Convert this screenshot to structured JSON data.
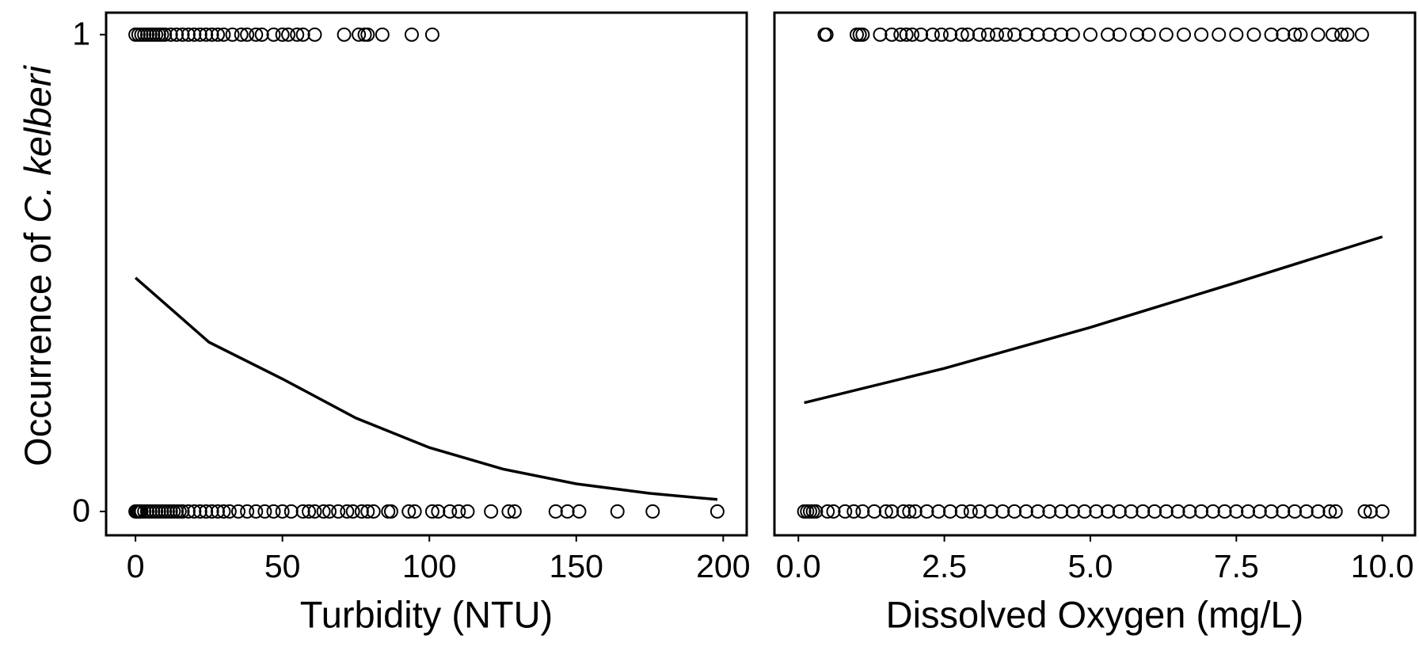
{
  "chart_data": [
    {
      "type": "scatter",
      "xlabel": "Turbidity (NTU)",
      "ylabel": [
        "Occurrence of",
        "C. kelberi"
      ],
      "ylabel_italic": [
        false,
        true
      ],
      "xlim": [
        -10,
        208
      ],
      "ylim": [
        -0.05,
        1.046
      ],
      "xticks": [
        0,
        50,
        100,
        150,
        200
      ],
      "yticks": [
        0,
        1
      ],
      "series": [
        {
          "kind": "points",
          "color": "#000000",
          "x": [
            0,
            1,
            2,
            3,
            4,
            5,
            6,
            7,
            8,
            9,
            10,
            12,
            14,
            16,
            18,
            20,
            22,
            24,
            26,
            28,
            30,
            33,
            36,
            38,
            41,
            43,
            47,
            50,
            52,
            55,
            57,
            61,
            71,
            76,
            78,
            79,
            84,
            94,
            101
          ],
          "values": [
            1,
            1,
            1,
            1,
            1,
            1,
            1,
            1,
            1,
            1,
            1,
            1,
            1,
            1,
            1,
            1,
            1,
            1,
            1,
            1,
            1,
            1,
            1,
            1,
            1,
            1,
            1,
            1,
            1,
            1,
            1,
            1,
            1,
            1,
            1,
            1,
            1,
            1,
            1
          ]
        },
        {
          "kind": "points",
          "color": "#000000",
          "x": [
            0,
            0.5,
            1,
            1.5,
            2,
            3,
            4,
            5,
            6,
            7,
            8,
            9,
            10,
            11,
            12,
            13,
            14,
            15,
            16,
            18,
            20,
            22,
            24,
            26,
            28,
            30,
            32,
            35,
            38,
            41,
            44,
            47,
            50,
            53,
            57,
            59,
            61,
            64,
            66,
            69,
            72,
            74,
            77,
            79,
            81,
            86,
            87,
            93,
            95,
            101,
            103,
            107,
            110,
            113,
            121,
            127,
            129,
            143,
            147,
            151,
            164,
            176,
            198
          ],
          "values": [
            0,
            0,
            0,
            0,
            0,
            0,
            0,
            0,
            0,
            0,
            0,
            0,
            0,
            0,
            0,
            0,
            0,
            0,
            0,
            0,
            0,
            0,
            0,
            0,
            0,
            0,
            0,
            0,
            0,
            0,
            0,
            0,
            0,
            0,
            0,
            0,
            0,
            0,
            0,
            0,
            0,
            0,
            0,
            0,
            0,
            0,
            0,
            0,
            0,
            0,
            0,
            0,
            0,
            0,
            0,
            0,
            0,
            0,
            0,
            0,
            0,
            0,
            0
          ]
        },
        {
          "kind": "line",
          "color": "#000000",
          "x": [
            0,
            25,
            50,
            75,
            100,
            125,
            150,
            175,
            198
          ],
          "values": [
            0.49,
            0.355,
            0.278,
            0.196,
            0.134,
            0.089,
            0.058,
            0.038,
            0.025
          ]
        }
      ]
    },
    {
      "type": "scatter",
      "xlabel": "Dissolved Oxygen (mg/L)",
      "xlim": [
        -0.41,
        10.56
      ],
      "ylim": [
        -0.05,
        1.046
      ],
      "xticks": [
        {
          "value": 0,
          "label": "0.0"
        },
        {
          "value": 2.5,
          "label": "2.5"
        },
        {
          "value": 5,
          "label": "5.0"
        },
        {
          "value": 7.5,
          "label": "7.5"
        },
        {
          "value": 10,
          "label": "10.0"
        }
      ],
      "series": [
        {
          "kind": "points",
          "color": "#000000",
          "x": [
            0.45,
            0.48,
            1.0,
            1.05,
            1.1,
            1.4,
            1.6,
            1.75,
            1.85,
            1.95,
            2.1,
            2.3,
            2.45,
            2.6,
            2.8,
            2.9,
            3.1,
            3.25,
            3.4,
            3.55,
            3.7,
            3.9,
            4.1,
            4.3,
            4.5,
            4.7,
            5.0,
            5.3,
            5.5,
            5.8,
            6.0,
            6.3,
            6.6,
            6.9,
            7.2,
            7.5,
            7.8,
            8.1,
            8.3,
            8.5,
            8.6,
            8.9,
            9.15,
            9.3,
            9.4,
            9.65
          ],
          "values": [
            1,
            1,
            1,
            1,
            1,
            1,
            1,
            1,
            1,
            1,
            1,
            1,
            1,
            1,
            1,
            1,
            1,
            1,
            1,
            1,
            1,
            1,
            1,
            1,
            1,
            1,
            1,
            1,
            1,
            1,
            1,
            1,
            1,
            1,
            1,
            1,
            1,
            1,
            1,
            1,
            1,
            1,
            1,
            1,
            1,
            1
          ]
        },
        {
          "kind": "points",
          "color": "#000000",
          "x": [
            0.1,
            0.15,
            0.2,
            0.25,
            0.3,
            0.5,
            0.6,
            0.8,
            0.95,
            1.1,
            1.3,
            1.5,
            1.6,
            1.8,
            1.9,
            2.0,
            2.2,
            2.4,
            2.6,
            2.8,
            2.95,
            3.1,
            3.3,
            3.5,
            3.7,
            3.9,
            4.1,
            4.3,
            4.5,
            4.7,
            4.9,
            5.1,
            5.3,
            5.5,
            5.7,
            5.9,
            6.1,
            6.3,
            6.5,
            6.7,
            6.9,
            7.1,
            7.3,
            7.5,
            7.7,
            7.9,
            8.1,
            8.3,
            8.5,
            8.7,
            8.9,
            9.1,
            9.2,
            9.7,
            9.8,
            10.0
          ],
          "values": [
            0,
            0,
            0,
            0,
            0,
            0,
            0,
            0,
            0,
            0,
            0,
            0,
            0,
            0,
            0,
            0,
            0,
            0,
            0,
            0,
            0,
            0,
            0,
            0,
            0,
            0,
            0,
            0,
            0,
            0,
            0,
            0,
            0,
            0,
            0,
            0,
            0,
            0,
            0,
            0,
            0,
            0,
            0,
            0,
            0,
            0,
            0,
            0,
            0,
            0,
            0,
            0,
            0,
            0,
            0,
            0
          ]
        },
        {
          "kind": "line",
          "color": "#000000",
          "x": [
            0.1,
            2.5,
            5,
            7.5,
            10
          ],
          "values": [
            0.228,
            0.3,
            0.386,
            0.48,
            0.576
          ]
        }
      ]
    }
  ]
}
